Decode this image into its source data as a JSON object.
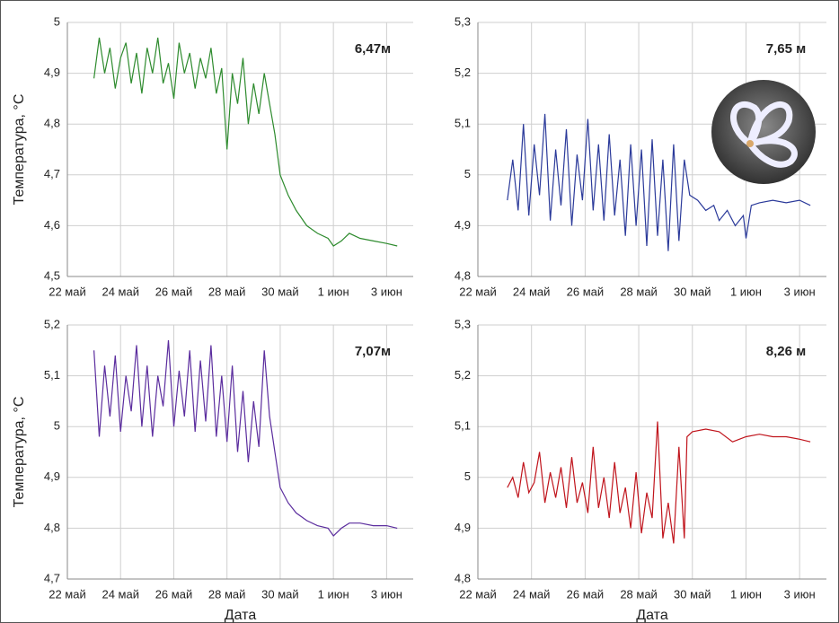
{
  "chart_data": [
    {
      "type": "line",
      "annotation": "6,47м",
      "ylabel": "Температура, °C",
      "color": "#2e8b2e",
      "xlim": [
        22,
        35
      ],
      "xticks": [
        {
          "value": 22,
          "label": "22 май"
        },
        {
          "value": 24,
          "label": "24 май"
        },
        {
          "value": 26,
          "label": "26 май"
        },
        {
          "value": 28,
          "label": "28 май"
        },
        {
          "value": 30,
          "label": "30 май"
        },
        {
          "value": 32,
          "label": "1 июн"
        },
        {
          "value": 34,
          "label": "3 июн"
        }
      ],
      "ylim": [
        4.5,
        5
      ],
      "yticks": [
        {
          "value": 4.5,
          "label": "4,5"
        },
        {
          "value": 4.6,
          "label": "4,6"
        },
        {
          "value": 4.7,
          "label": "4,7"
        },
        {
          "value": 4.8,
          "label": "4,8"
        },
        {
          "value": 4.9,
          "label": "4,9"
        },
        5
      ],
      "grid": true,
      "x": [
        23.0,
        23.2,
        23.4,
        23.6,
        23.8,
        24.0,
        24.2,
        24.4,
        24.6,
        24.8,
        25.0,
        25.2,
        25.4,
        25.6,
        25.8,
        26.0,
        26.2,
        26.4,
        26.6,
        26.8,
        27.0,
        27.2,
        27.4,
        27.6,
        27.8,
        28.0,
        28.2,
        28.4,
        28.6,
        28.8,
        29.0,
        29.2,
        29.4,
        29.6,
        29.8,
        30.0,
        30.3,
        30.6,
        31.0,
        31.4,
        31.8,
        32.0,
        32.3,
        32.6,
        33.0,
        33.5,
        34.0,
        34.4
      ],
      "values": [
        4.89,
        4.97,
        4.9,
        4.95,
        4.87,
        4.93,
        4.96,
        4.88,
        4.94,
        4.86,
        4.95,
        4.9,
        4.97,
        4.88,
        4.92,
        4.85,
        4.96,
        4.9,
        4.94,
        4.87,
        4.93,
        4.89,
        4.95,
        4.86,
        4.91,
        4.75,
        4.9,
        4.84,
        4.93,
        4.8,
        4.88,
        4.82,
        4.9,
        4.84,
        4.78,
        4.7,
        4.66,
        4.63,
        4.6,
        4.585,
        4.575,
        4.56,
        4.57,
        4.585,
        4.575,
        4.57,
        4.565,
        4.56
      ]
    },
    {
      "type": "line",
      "annotation": "7,65 м",
      "color": "#2b3a9a",
      "xlim": [
        22,
        35
      ],
      "xticks": [
        {
          "value": 22,
          "label": "22 май"
        },
        {
          "value": 24,
          "label": "24 май"
        },
        {
          "value": 26,
          "label": "26 май"
        },
        {
          "value": 28,
          "label": "28 май"
        },
        {
          "value": 30,
          "label": "30 май"
        },
        {
          "value": 32,
          "label": "1 июн"
        },
        {
          "value": 34,
          "label": "3 июн"
        }
      ],
      "ylim": [
        4.8,
        5.3
      ],
      "yticks": [
        {
          "value": 4.8,
          "label": "4,8"
        },
        {
          "value": 4.9,
          "label": "4,9"
        },
        5,
        {
          "value": 5.1,
          "label": "5,1"
        },
        {
          "value": 5.2,
          "label": "5,2"
        },
        {
          "value": 5.3,
          "label": "5,3"
        }
      ],
      "grid": true,
      "x": [
        23.1,
        23.3,
        23.5,
        23.7,
        23.9,
        24.1,
        24.3,
        24.5,
        24.7,
        24.9,
        25.1,
        25.3,
        25.5,
        25.7,
        25.9,
        26.1,
        26.3,
        26.5,
        26.7,
        26.9,
        27.1,
        27.3,
        27.5,
        27.7,
        27.9,
        28.1,
        28.3,
        28.5,
        28.7,
        28.9,
        29.1,
        29.3,
        29.5,
        29.7,
        29.9,
        30.2,
        30.5,
        30.8,
        31.0,
        31.3,
        31.6,
        31.9,
        32.0,
        32.2,
        32.5,
        33.0,
        33.5,
        34.0,
        34.4
      ],
      "values": [
        4.95,
        5.03,
        4.93,
        5.1,
        4.92,
        5.06,
        4.96,
        5.12,
        4.91,
        5.05,
        4.94,
        5.09,
        4.9,
        5.04,
        4.95,
        5.11,
        4.93,
        5.06,
        4.91,
        5.08,
        4.92,
        5.03,
        4.88,
        5.06,
        4.9,
        5.05,
        4.86,
        5.07,
        4.88,
        5.03,
        4.85,
        5.06,
        4.87,
        5.03,
        4.96,
        4.95,
        4.93,
        4.94,
        4.91,
        4.93,
        4.9,
        4.92,
        4.875,
        4.94,
        4.945,
        4.95,
        4.945,
        4.95,
        4.94
      ]
    },
    {
      "type": "line",
      "annotation": "7,07м",
      "ylabel": "Температура, °C",
      "xlabel": "Дата",
      "color": "#5b2d9e",
      "xlim": [
        22,
        35
      ],
      "xticks": [
        {
          "value": 22,
          "label": "22 май"
        },
        {
          "value": 24,
          "label": "24 май"
        },
        {
          "value": 26,
          "label": "26 май"
        },
        {
          "value": 28,
          "label": "28 май"
        },
        {
          "value": 30,
          "label": "30 май"
        },
        {
          "value": 32,
          "label": "1 июн"
        },
        {
          "value": 34,
          "label": "3 июн"
        }
      ],
      "ylim": [
        4.7,
        5.2
      ],
      "yticks": [
        {
          "value": 4.7,
          "label": "4,7"
        },
        {
          "value": 4.8,
          "label": "4,8"
        },
        {
          "value": 4.9,
          "label": "4,9"
        },
        5,
        {
          "value": 5.1,
          "label": "5,1"
        },
        {
          "value": 5.2,
          "label": "5,2"
        }
      ],
      "grid": true,
      "x": [
        23.0,
        23.2,
        23.4,
        23.6,
        23.8,
        24.0,
        24.2,
        24.4,
        24.6,
        24.8,
        25.0,
        25.2,
        25.4,
        25.6,
        25.8,
        26.0,
        26.2,
        26.4,
        26.6,
        26.8,
        27.0,
        27.2,
        27.4,
        27.6,
        27.8,
        28.0,
        28.2,
        28.4,
        28.6,
        28.8,
        29.0,
        29.2,
        29.4,
        29.6,
        29.8,
        30.0,
        30.3,
        30.6,
        31.0,
        31.4,
        31.8,
        32.0,
        32.3,
        32.6,
        33.0,
        33.5,
        34.0,
        34.4
      ],
      "values": [
        5.15,
        4.98,
        5.12,
        5.02,
        5.14,
        4.99,
        5.1,
        5.03,
        5.16,
        5.0,
        5.12,
        4.98,
        5.1,
        5.04,
        5.17,
        5.0,
        5.11,
        5.02,
        5.15,
        4.99,
        5.13,
        5.01,
        5.16,
        4.98,
        5.1,
        4.97,
        5.12,
        4.95,
        5.07,
        4.93,
        5.05,
        4.96,
        5.15,
        5.02,
        4.95,
        4.88,
        4.85,
        4.83,
        4.815,
        4.805,
        4.8,
        4.785,
        4.8,
        4.81,
        4.81,
        4.805,
        4.805,
        4.8
      ]
    },
    {
      "type": "line",
      "annotation": "8,26 м",
      "xlabel": "Дата",
      "color": "#c0141c",
      "xlim": [
        22,
        35
      ],
      "xticks": [
        {
          "value": 22,
          "label": "22 май"
        },
        {
          "value": 24,
          "label": "24 май"
        },
        {
          "value": 26,
          "label": "26 май"
        },
        {
          "value": 28,
          "label": "28 май"
        },
        {
          "value": 30,
          "label": "30 май"
        },
        {
          "value": 32,
          "label": "1 июн"
        },
        {
          "value": 34,
          "label": "3 июн"
        }
      ],
      "ylim": [
        4.8,
        5.3
      ],
      "yticks": [
        {
          "value": 4.8,
          "label": "4,8"
        },
        {
          "value": 4.9,
          "label": "4,9"
        },
        5,
        {
          "value": 5.1,
          "label": "5,1"
        },
        {
          "value": 5.2,
          "label": "5,2"
        },
        {
          "value": 5.3,
          "label": "5,3"
        }
      ],
      "grid": true,
      "x": [
        23.1,
        23.3,
        23.5,
        23.7,
        23.9,
        24.1,
        24.3,
        24.5,
        24.7,
        24.9,
        25.1,
        25.3,
        25.5,
        25.7,
        25.9,
        26.1,
        26.3,
        26.5,
        26.7,
        26.9,
        27.1,
        27.3,
        27.5,
        27.7,
        27.9,
        28.1,
        28.3,
        28.5,
        28.7,
        28.9,
        29.1,
        29.3,
        29.5,
        29.7,
        29.8,
        30.0,
        30.5,
        31.0,
        31.5,
        32.0,
        32.5,
        33.0,
        33.5,
        34.0,
        34.4
      ],
      "values": [
        4.98,
        5.0,
        4.96,
        5.03,
        4.97,
        4.99,
        5.05,
        4.95,
        5.01,
        4.96,
        5.02,
        4.94,
        5.04,
        4.95,
        4.99,
        4.93,
        5.06,
        4.94,
        5.0,
        4.92,
        5.03,
        4.93,
        4.98,
        4.9,
        5.01,
        4.89,
        4.97,
        4.92,
        5.11,
        4.88,
        4.95,
        4.87,
        5.06,
        4.88,
        5.08,
        5.09,
        5.095,
        5.09,
        5.07,
        5.08,
        5.085,
        5.08,
        5.08,
        5.075,
        5.07
      ]
    }
  ]
}
